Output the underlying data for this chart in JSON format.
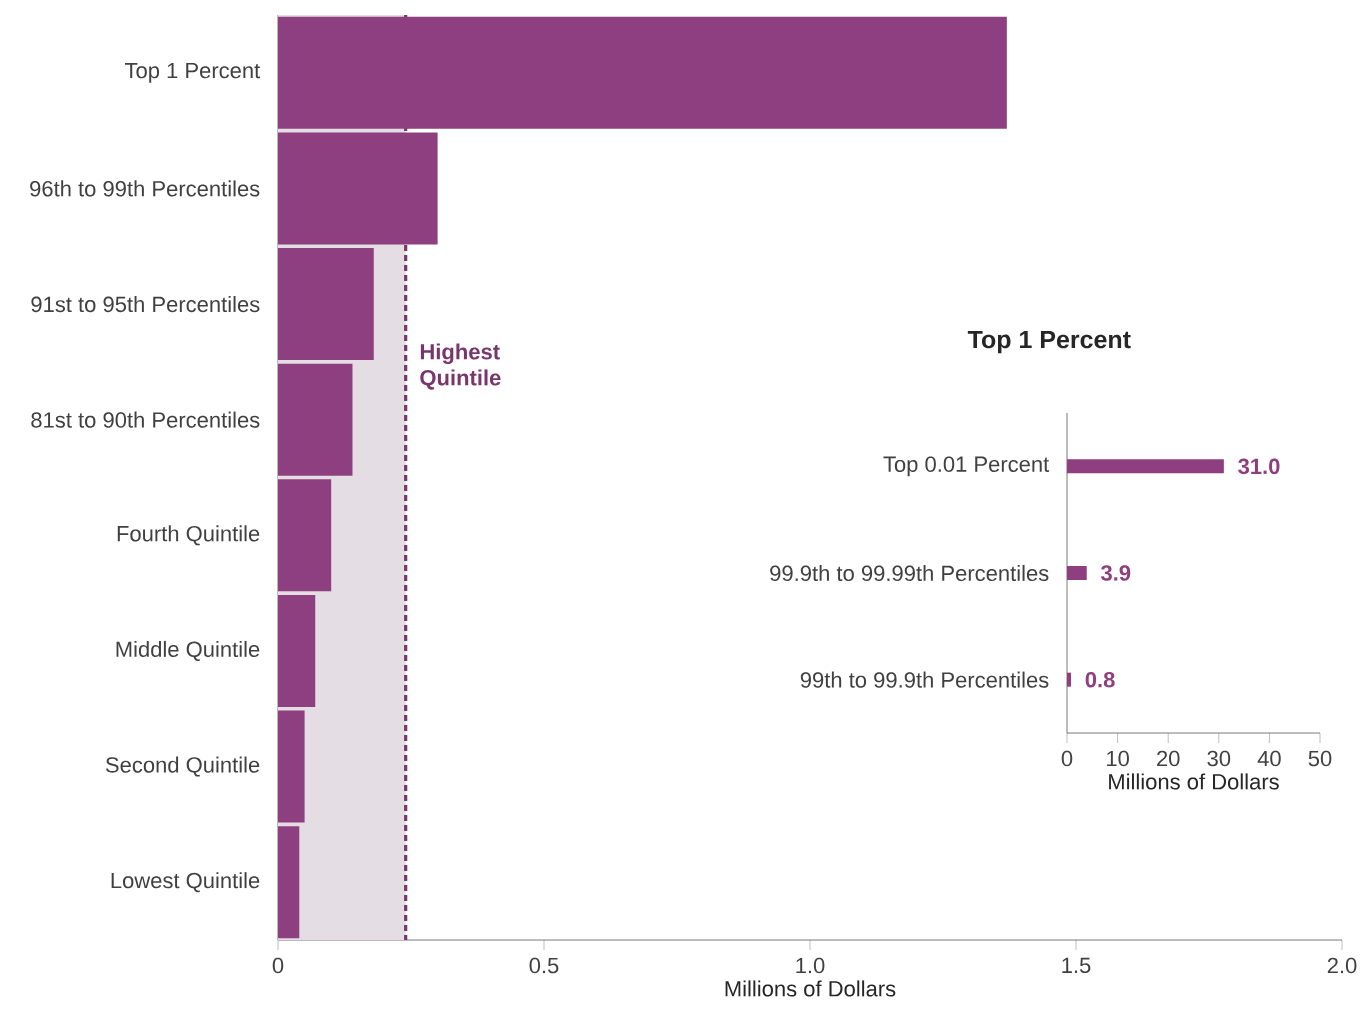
{
  "chart_data": [
    {
      "type": "bar",
      "orientation": "horizontal",
      "xlabel": "Millions of Dollars",
      "categories": [
        "Top 1 Percent",
        "96th to 99th Percentiles",
        "91st to 95th Percentiles",
        "81st to 90th Percentiles",
        "Fourth Quintile",
        "Middle Quintile",
        "Second Quintile",
        "Lowest Quintile"
      ],
      "series": [
        {
          "color": "#8e3f7f",
          "values": [
            1.37,
            0.3,
            0.18,
            0.14,
            0.1,
            0.07,
            0.05,
            0.04
          ]
        }
      ],
      "bands": [
        {
          "axis": "x",
          "from": 0,
          "to": 0.24,
          "color": "#e4dde3"
        }
      ],
      "ref_lines": [
        {
          "axis": "x",
          "value": 0.24,
          "label": "Highest Quintile",
          "color": "#79366c",
          "line_style": "dashed"
        }
      ],
      "xlim": [
        0,
        2
      ],
      "xticks": [
        0,
        0.5,
        {
          "value": 1,
          "label": "1.0"
        },
        1.5,
        {
          "value": 2,
          "label": "2.0"
        }
      ]
    },
    {
      "type": "bar",
      "orientation": "horizontal",
      "title": "Top 1 Percent",
      "xlabel": "Millions of Dollars",
      "categories": [
        "Top 0.01 Percent",
        "99.9th to 99.99th Percentiles",
        "99th to 99.9th Percentiles"
      ],
      "values": [
        31.0,
        3.9,
        0.8
      ],
      "color": "#8e3f7f",
      "xlim": [
        0,
        50
      ],
      "xticks": [
        0,
        10,
        20,
        30,
        40,
        50
      ],
      "value_labels": [
        "31.0",
        "3.9",
        "0.8"
      ]
    }
  ]
}
